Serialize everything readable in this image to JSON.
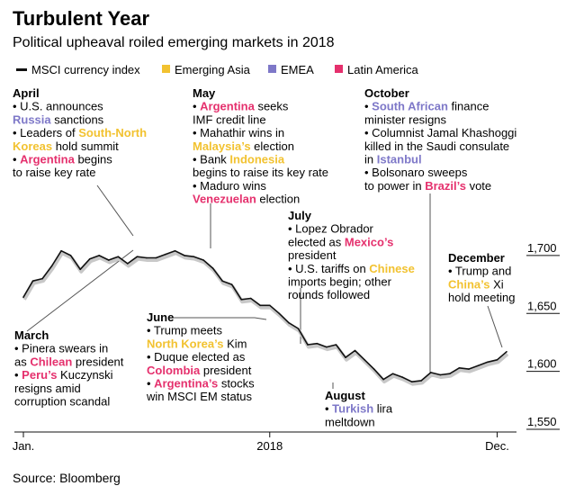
{
  "chart_data": {
    "type": "line",
    "title": "Turbulent Year",
    "subtitle": "Political upheaval roiled emerging markets in 2018",
    "legend": [
      {
        "label": "MSCI currency index",
        "color": "#111111",
        "marker": "line"
      },
      {
        "label": "Emerging Asia",
        "color": "#f2c230",
        "marker": "square"
      },
      {
        "label": "EMEA",
        "color": "#7e78c8",
        "marker": "square"
      },
      {
        "label": "Latin America",
        "color": "#e5306d",
        "marker": "square"
      }
    ],
    "colors": {
      "asia": "#f2c230",
      "emea": "#7e78c8",
      "latam": "#e5306d",
      "line": "#111111",
      "shadow": "#c8c8c8",
      "leader": "#555555"
    },
    "x_ticks": [
      {
        "label": "Jan.",
        "week": 0
      },
      {
        "label": "2018",
        "week": 26
      },
      {
        "label": "Dec.",
        "week": 50
      }
    ],
    "y_ticks": [
      1700,
      1650,
      1600,
      1550
    ],
    "ylim": [
      1550,
      1710
    ],
    "xlim": [
      0,
      51
    ],
    "series": [
      {
        "name": "MSCI currency index",
        "x": [
          0,
          1,
          2,
          3,
          4,
          5,
          6,
          7,
          8,
          9,
          10,
          11,
          12,
          13,
          14,
          15,
          16,
          17,
          18,
          19,
          20,
          21,
          22,
          23,
          24,
          25,
          26,
          27,
          28,
          29,
          30,
          31,
          32,
          33,
          34,
          35,
          36,
          37,
          38,
          39,
          40,
          41,
          42,
          43,
          44,
          45,
          46,
          47,
          48,
          49,
          50,
          51
        ],
        "values": [
          1657,
          1671,
          1673,
          1684,
          1697,
          1693,
          1681,
          1690,
          1693,
          1689,
          1692,
          1686,
          1692,
          1691,
          1691,
          1694,
          1697,
          1693,
          1692,
          1689,
          1682,
          1671,
          1668,
          1655,
          1656,
          1650,
          1650,
          1643,
          1635,
          1630,
          1616,
          1617,
          1614,
          1616,
          1605,
          1611,
          1603,
          1595,
          1586,
          1591,
          1588,
          1584,
          1585,
          1592,
          1590,
          1591,
          1596,
          1595,
          1598,
          1601,
          1603,
          1610
        ]
      }
    ],
    "annotations": [
      {
        "id": "april",
        "heading": "April",
        "week": 13.5,
        "value": 1690,
        "lines": [
          [
            {
              "t": "• U.S. announces"
            }
          ],
          [
            {
              "t": "Russia",
              "c": "emea",
              "b": true
            },
            {
              "t": " sanctions"
            }
          ],
          [
            {
              "t": "• Leaders of "
            },
            {
              "t": "South-North",
              "c": "asia",
              "b": true
            }
          ],
          [
            {
              "t": "Koreas",
              "c": "asia",
              "b": true
            },
            {
              "t": " hold summit"
            }
          ],
          [
            {
              "t": "• "
            },
            {
              "t": "Argentina",
              "c": "latam",
              "b": true
            },
            {
              "t": " begins"
            }
          ],
          [
            {
              "t": "to raise key rate"
            }
          ]
        ]
      },
      {
        "id": "may",
        "heading": "May",
        "week": 20,
        "value": 1685,
        "lines": [
          [
            {
              "t": "• "
            },
            {
              "t": "Argentina",
              "c": "latam",
              "b": true
            },
            {
              "t": " seeks"
            }
          ],
          [
            {
              "t": "IMF credit line"
            }
          ],
          [
            {
              "t": "• Mahathir wins in"
            }
          ],
          [
            {
              "t": "Malaysia’s",
              "c": "asia",
              "b": true
            },
            {
              "t": " election"
            }
          ],
          [
            {
              "t": "• Bank "
            },
            {
              "t": "Indonesia",
              "c": "asia",
              "b": true
            }
          ],
          [
            {
              "t": "begins to raise its key rate"
            }
          ],
          [
            {
              "t": "• Maduro wins"
            }
          ],
          [
            {
              "t": "Venezuelan",
              "c": "latam",
              "b": true
            },
            {
              "t": " election"
            }
          ]
        ]
      },
      {
        "id": "october",
        "heading": "October",
        "week": 43.5,
        "value": 1592,
        "lines": [
          [
            {
              "t": "• "
            },
            {
              "t": "South African",
              "c": "emea",
              "b": true
            },
            {
              "t": " finance"
            }
          ],
          [
            {
              "t": "minister resigns"
            }
          ],
          [
            {
              "t": "• Columnist Jamal Khashoggi"
            }
          ],
          [
            {
              "t": "killed in the Saudi consulate"
            }
          ],
          [
            {
              "t": "in "
            },
            {
              "t": "Istanbul",
              "c": "emea",
              "b": true
            }
          ],
          [
            {
              "t": "• Bolsonaro sweeps"
            }
          ],
          [
            {
              "t": "to power in "
            },
            {
              "t": "Brazil’s",
              "c": "latam",
              "b": true
            },
            {
              "t": " vote"
            }
          ]
        ]
      },
      {
        "id": "july",
        "heading": "July",
        "week": 30,
        "value": 1616,
        "lines": [
          [
            {
              "t": "• Lopez Obrador"
            }
          ],
          [
            {
              "t": "elected as "
            },
            {
              "t": "Mexico’s",
              "c": "latam",
              "b": true
            }
          ],
          [
            {
              "t": "president"
            }
          ],
          [
            {
              "t": "• U.S. tariffs on "
            },
            {
              "t": "Chinese",
              "c": "asia",
              "b": true
            }
          ],
          [
            {
              "t": "imports begin; other"
            }
          ],
          [
            {
              "t": "rounds followed"
            }
          ]
        ]
      },
      {
        "id": "december",
        "heading": "December",
        "week": 49.5,
        "value": 1604,
        "lines": [
          [
            {
              "t": "• Trump and"
            }
          ],
          [
            {
              "t": "China’s",
              "c": "asia",
              "b": true
            },
            {
              "t": " Xi"
            }
          ],
          [
            {
              "t": "hold meeting"
            }
          ]
        ]
      },
      {
        "id": "march",
        "heading": "March",
        "week": 8.5,
        "value": 1692,
        "lines": [
          [
            {
              "t": "• Pinera swears in"
            }
          ],
          [
            {
              "t": "as "
            },
            {
              "t": "Chilean",
              "c": "latam",
              "b": true
            },
            {
              "t": " president"
            }
          ],
          [
            {
              "t": "• "
            },
            {
              "t": "Peru’s",
              "c": "latam",
              "b": true
            },
            {
              "t": " Kuczynski"
            }
          ],
          [
            {
              "t": "resigns amid"
            }
          ],
          [
            {
              "t": "corruption scandal"
            }
          ]
        ]
      },
      {
        "id": "june",
        "heading": "June",
        "week": 27,
        "value": 1635,
        "lines": [
          [
            {
              "t": "• Trump meets"
            }
          ],
          [
            {
              "t": "North Korea’s",
              "c": "asia",
              "b": true
            },
            {
              "t": " Kim"
            }
          ],
          [
            {
              "t": "• Duque elected as"
            }
          ],
          [
            {
              "t": "Colombia",
              "c": "latam",
              "b": true
            },
            {
              "t": " president"
            }
          ],
          [
            {
              "t": "• "
            },
            {
              "t": "Argentina’s",
              "c": "latam",
              "b": true
            },
            {
              "t": " stocks"
            }
          ],
          [
            {
              "t": "win MSCI EM status"
            }
          ]
        ]
      },
      {
        "id": "august",
        "heading": "August",
        "week": 38,
        "value": 1586,
        "lines": [
          [
            {
              "t": "• "
            },
            {
              "t": "Turkish",
              "c": "emea",
              "b": true
            },
            {
              "t": " lira"
            }
          ],
          [
            {
              "t": "meltdown"
            }
          ]
        ]
      }
    ],
    "source": "Source: Bloomberg"
  }
}
